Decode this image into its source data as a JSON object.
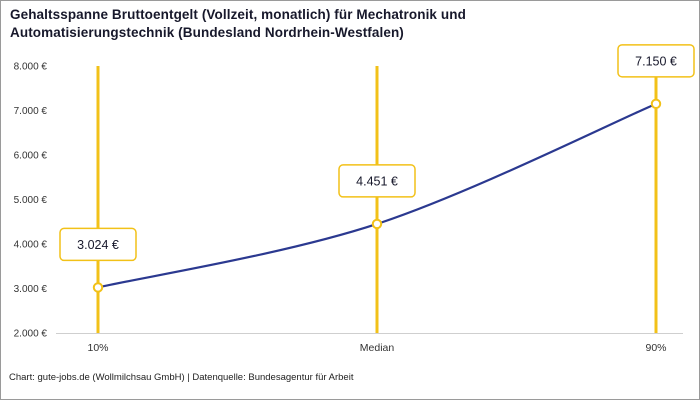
{
  "title": {
    "line1": "Gehaltsspanne Bruttoentgelt (Vollzeit, monatlich) für Mechatronik und",
    "line2": "Automatisierungstechnik (Bundesland Nordrhein-Westfalen)"
  },
  "footer": {
    "text": "Chart: gute-jobs.de (Wollmilchsau GmbH) | Datenquelle: Bundesagentur für Arbeit"
  },
  "chart_data": {
    "type": "line",
    "title": "Gehaltsspanne Bruttoentgelt (Vollzeit, monatlich) für Mechatronik und Automatisierungstechnik (Bundesland Nordrhein-Westfalen)",
    "categories": [
      "10%",
      "Median",
      "90%"
    ],
    "values": [
      3024,
      4451,
      7150
    ],
    "value_labels": [
      "3.024 €",
      "4.451 €",
      "7.150 €"
    ],
    "ylim": [
      2000,
      8000
    ],
    "y_ticks": [
      {
        "value": 8000,
        "label": "8.000 €"
      },
      {
        "value": 7000,
        "label": "7.000 €"
      },
      {
        "value": 6000,
        "label": "6.000 €"
      },
      {
        "value": 5000,
        "label": "5.000 €"
      },
      {
        "value": 4000,
        "label": "4.000 €"
      },
      {
        "value": 3000,
        "label": "3.000 €"
      },
      {
        "value": 2000,
        "label": "2.000 €"
      }
    ],
    "grid": false,
    "legend": false,
    "colors": {
      "line": "#2b3990",
      "highlight": "#f2c118",
      "label_box_border": "#f2c118",
      "axis_line": "#cfcfcf",
      "tick_text": "#333333",
      "label_text": "#17182b"
    }
  }
}
